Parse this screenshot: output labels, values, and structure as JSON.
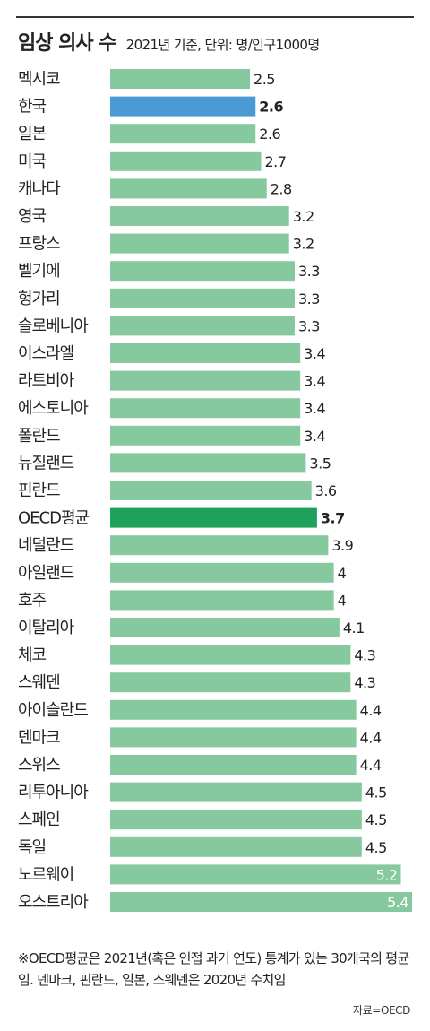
{
  "header": {
    "title": "임상 의사 수",
    "subtitle": "2021년 기준, 단위: 명/인구1000명"
  },
  "colors": {
    "default_bar": "#86c99e",
    "korea_bar": "#4a9bd3",
    "oecd_bar": "#1fa15b"
  },
  "chart_data": {
    "type": "bar",
    "orientation": "horizontal",
    "categories": [
      "멕시코",
      "한국",
      "일본",
      "미국",
      "캐나다",
      "영국",
      "프랑스",
      "벨기에",
      "헝가리",
      "슬로베니아",
      "이스라엘",
      "라트비아",
      "에스토니아",
      "폴란드",
      "뉴질랜드",
      "핀란드",
      "OECD평균",
      "네덜란드",
      "아일랜드",
      "호주",
      "이탈리아",
      "체코",
      "스웨덴",
      "아이슬란드",
      "덴마크",
      "스위스",
      "리투아니아",
      "스페인",
      "독일",
      "노르웨이",
      "오스트리아"
    ],
    "values": [
      2.5,
      2.6,
      2.6,
      2.7,
      2.8,
      3.2,
      3.2,
      3.3,
      3.3,
      3.3,
      3.4,
      3.4,
      3.4,
      3.4,
      3.5,
      3.6,
      3.7,
      3.9,
      4,
      4,
      4.1,
      4.3,
      4.3,
      4.4,
      4.4,
      4.4,
      4.5,
      4.5,
      4.5,
      5.2,
      5.4
    ],
    "value_labels": [
      "2.5",
      "2.6",
      "2.6",
      "2.7",
      "2.8",
      "3.2",
      "3.2",
      "3.3",
      "3.3",
      "3.3",
      "3.4",
      "3.4",
      "3.4",
      "3.4",
      "3.5",
      "3.6",
      "3.7",
      "3.9",
      "4",
      "4",
      "4.1",
      "4.3",
      "4.3",
      "4.4",
      "4.4",
      "4.4",
      "4.5",
      "4.5",
      "4.5",
      "5.2",
      "5.4"
    ],
    "highlight": {
      "한국": "korea_bar",
      "OECD평균": "oecd_bar"
    },
    "bold_labels": [
      "한국",
      "OECD평균"
    ],
    "xlim": [
      0,
      5.4
    ],
    "grid": false,
    "legend": "none"
  },
  "footer": {
    "note": "※OECD평균은 2021년(혹은 인접 과거 연도) 통계가 있는 30개국의 평균임. 덴마크, 핀란드, 일본, 스웨덴은 2020년 수치임",
    "source": "자료=OECD"
  }
}
